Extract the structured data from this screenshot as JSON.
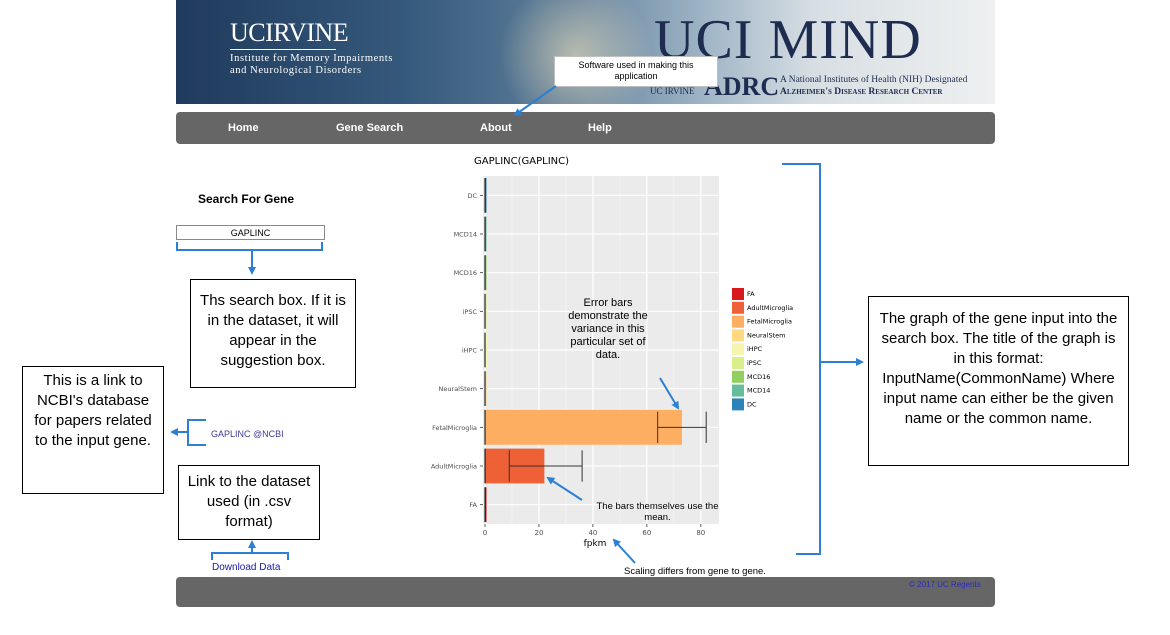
{
  "banner": {
    "uci_name": "UCIRVINE",
    "institute_line1": "Institute for Memory Impairments",
    "institute_line2": "and Neurological Disorders",
    "mind_logo": "UCI MIND",
    "adrc": "ADRC",
    "uc_irvine": "UC IRVINE",
    "nih_line1": "A National Institutes of Health (NIH) Designated",
    "nih_line2": "Alzheimer's Disease Research Center",
    "brand_color": "#1d2c4f"
  },
  "nav": {
    "items": [
      {
        "label": "Home"
      },
      {
        "label": "Gene Search"
      },
      {
        "label": "About"
      },
      {
        "label": "Help"
      }
    ]
  },
  "sidebar": {
    "search_title": "Search For Gene",
    "search_value": "GAPLINC",
    "ncbi_link": "GAPLINC @NCBI",
    "download_link": "Download Data"
  },
  "annotations": {
    "software": "Software used in making this application",
    "search_box": "Ths search box. If it is in the dataset, it will appear in the suggestion box.",
    "ncbi": "This is a link to NCBI's database for papers related to the input gene.",
    "dataset": "Link to the dataset used (in .csv format)",
    "error_bars": "Error bars demonstrate the variance in this particular set of data.",
    "bars_mean": "The bars themselves use the mean.",
    "scaling": "Scaling differs from gene to gene.",
    "graph": "The graph of the gene input into the search box. The title of the graph is in this format: InputName(CommonName) Where input name can either be the given name or the common name."
  },
  "footer": {
    "copyright": "© 2017 UC Regents"
  },
  "chart_data": {
    "type": "bar",
    "orientation": "horizontal",
    "title": "GAPLINC(GAPLINC)",
    "xlabel": "fpkm",
    "ylabel": "",
    "xlim": [
      0,
      86
    ],
    "xticks": [
      0,
      20,
      40,
      60,
      80
    ],
    "categories": [
      "FA",
      "AdultMicroglia",
      "FetalMicroglia",
      "NeuralStem",
      "iHPC",
      "iPSC",
      "MCD16",
      "MCD14",
      "DC"
    ],
    "values": [
      0.3,
      22,
      73,
      0.5,
      1.0,
      0.6,
      0.3,
      0.3,
      0.2
    ],
    "error_low": [
      0.3,
      9,
      64,
      0.5,
      1.0,
      0.6,
      0.3,
      0.3,
      0.2
    ],
    "error_high": [
      0.3,
      36,
      82,
      0.5,
      1.0,
      0.6,
      0.3,
      0.3,
      0.2
    ],
    "colors": [
      "#d7191c",
      "#ee6136",
      "#fdae61",
      "#fed980",
      "#f5f5b0",
      "#d9ef8b",
      "#91cf60",
      "#66bd9b",
      "#2b83ba"
    ],
    "legend": {
      "placement": "right",
      "entries": [
        "FA",
        "AdultMicroglia",
        "FetalMicroglia",
        "NeuralStem",
        "iHPC",
        "iPSC",
        "MCD16",
        "MCD14",
        "DC"
      ]
    },
    "grid": true
  }
}
